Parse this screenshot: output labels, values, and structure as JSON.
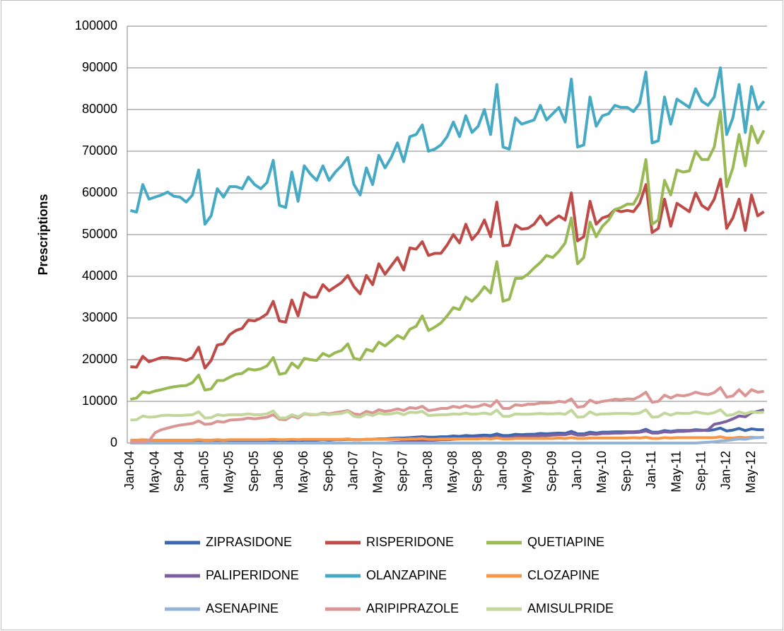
{
  "chart_data": {
    "type": "line",
    "y_label": "Prescriptions",
    "categories": [
      "Jan-04",
      null,
      null,
      null,
      "May-04",
      null,
      null,
      null,
      "Sep-04",
      null,
      null,
      null,
      "Jan-05",
      null,
      null,
      null,
      "May-05",
      null,
      null,
      null,
      "Sep-05",
      null,
      null,
      null,
      "Jan-06",
      null,
      null,
      null,
      "May-06",
      null,
      null,
      null,
      "Sep-06",
      null,
      null,
      null,
      "Jan-07",
      null,
      null,
      null,
      "May-07",
      null,
      null,
      null,
      "Sep-07",
      null,
      null,
      null,
      "Jan-08",
      null,
      null,
      null,
      "May-08",
      null,
      null,
      null,
      "Sep-08",
      null,
      null,
      null,
      "Jan-09",
      null,
      null,
      null,
      "May-09",
      null,
      null,
      null,
      "Sep-09",
      null,
      null,
      null,
      "Jan-10",
      null,
      null,
      null,
      "May-10",
      null,
      null,
      null,
      "Sep-10",
      null,
      null,
      null,
      "Jan-11",
      null,
      null,
      null,
      "May-11",
      null,
      null,
      null,
      "Sep-11",
      null,
      null,
      null,
      "Jan-12",
      null,
      null,
      null,
      "May-12",
      null,
      null
    ],
    "ylim": [
      0,
      100000
    ],
    "yticks": [
      0,
      10000,
      20000,
      30000,
      40000,
      50000,
      60000,
      70000,
      80000,
      90000,
      100000
    ],
    "grid": true,
    "legend": "bottom",
    "series": [
      {
        "name": "ZIPRASIDONE",
        "color": "#3c66ad",
        "values": [
          400,
          400,
          500,
          400,
          500,
          500,
          500,
          500,
          500,
          500,
          500,
          600,
          500,
          500,
          600,
          500,
          600,
          600,
          600,
          600,
          600,
          600,
          600,
          700,
          600,
          600,
          700,
          600,
          700,
          700,
          700,
          800,
          700,
          800,
          800,
          900,
          800,
          800,
          900,
          900,
          1000,
          1000,
          1100,
          1200,
          1200,
          1300,
          1400,
          1500,
          1400,
          1400,
          1500,
          1500,
          1700,
          1600,
          1800,
          1700,
          1800,
          1900,
          1800,
          2200,
          1800,
          1800,
          2100,
          2000,
          2100,
          2100,
          2300,
          2200,
          2300,
          2400,
          2300,
          2800,
          2200,
          2200,
          2600,
          2400,
          2600,
          2600,
          2700,
          2700,
          2700,
          2700,
          2800,
          3300,
          2600,
          2600,
          3000,
          2800,
          3000,
          3000,
          3000,
          3200,
          3100,
          3000,
          3200,
          3600,
          2900,
          3100,
          3500,
          3000,
          3400,
          3200,
          3200
        ]
      },
      {
        "name": "RISPERIDONE",
        "color": "#be4b48",
        "values": [
          18300,
          18200,
          20800,
          19500,
          20000,
          20500,
          20500,
          20300,
          20200,
          19800,
          20500,
          23000,
          18000,
          19800,
          23500,
          23800,
          26000,
          27000,
          27500,
          29500,
          29300,
          30000,
          31000,
          34000,
          29300,
          29000,
          34300,
          30500,
          36000,
          35000,
          35000,
          38000,
          36500,
          37500,
          38500,
          40200,
          37500,
          35800,
          40200,
          38000,
          43000,
          40500,
          42500,
          44500,
          41500,
          46800,
          46500,
          48300,
          45000,
          45500,
          45500,
          47500,
          50000,
          48000,
          52500,
          48800,
          50500,
          53500,
          49500,
          57800,
          47300,
          47500,
          52300,
          51300,
          51500,
          52500,
          54500,
          52300,
          53500,
          54500,
          53500,
          60000,
          48500,
          49500,
          58000,
          52500,
          54000,
          54500,
          56000,
          55500,
          55800,
          55500,
          57500,
          62000,
          50500,
          51500,
          58500,
          52000,
          57500,
          56500,
          55500,
          60000,
          57000,
          56000,
          58500,
          63300,
          51500,
          54000,
          58500,
          51000,
          59500,
          54500,
          55500
        ]
      },
      {
        "name": "QUETIAPINE",
        "color": "#98b954",
        "values": [
          10500,
          10800,
          12300,
          12000,
          12500,
          12800,
          13200,
          13500,
          13700,
          13800,
          14500,
          16300,
          12700,
          13000,
          15000,
          15000,
          15800,
          16500,
          16700,
          17800,
          17500,
          17800,
          18500,
          20500,
          16500,
          16800,
          19200,
          18000,
          20300,
          20000,
          19800,
          21500,
          20800,
          21700,
          22200,
          23800,
          20300,
          20000,
          22500,
          22000,
          24200,
          23300,
          24500,
          25800,
          25000,
          27300,
          28000,
          30500,
          27000,
          27800,
          28800,
          30500,
          32500,
          32000,
          35000,
          34000,
          35500,
          37500,
          36000,
          43500,
          34000,
          34500,
          39500,
          39500,
          40500,
          42000,
          43300,
          45000,
          44500,
          46000,
          48000,
          54000,
          43000,
          44500,
          53000,
          49500,
          52000,
          53500,
          56000,
          56500,
          57300,
          57300,
          60000,
          68000,
          52500,
          53500,
          63000,
          59500,
          65500,
          65000,
          65300,
          70000,
          68000,
          68000,
          71000,
          79500,
          61500,
          66000,
          74000,
          66500,
          76000,
          72000,
          75000
        ]
      },
      {
        "name": "PALIPERIDONE",
        "color": "#7d60a0",
        "values": [
          0,
          0,
          0,
          0,
          0,
          0,
          0,
          0,
          0,
          0,
          0,
          0,
          0,
          0,
          0,
          0,
          0,
          0,
          0,
          0,
          0,
          0,
          0,
          0,
          0,
          0,
          0,
          0,
          0,
          0,
          0,
          0,
          0,
          0,
          0,
          0,
          0,
          0,
          0,
          0,
          0,
          0,
          100,
          200,
          300,
          400,
          500,
          600,
          600,
          700,
          800,
          800,
          900,
          1000,
          1100,
          1100,
          1200,
          1300,
          1300,
          1500,
          1300,
          1300,
          1500,
          1500,
          1600,
          1700,
          1800,
          1800,
          1900,
          2000,
          2000,
          2300,
          1900,
          1900,
          2200,
          2100,
          2300,
          2300,
          2400,
          2400,
          2500,
          2500,
          2600,
          2900,
          2400,
          2400,
          2700,
          2600,
          2800,
          2800,
          2900,
          3000,
          3000,
          3200,
          4500,
          4800,
          5200,
          5800,
          6500,
          6300,
          7300,
          7600,
          8000
        ]
      },
      {
        "name": "OLANZAPINE",
        "color": "#46aac5",
        "values": [
          55800,
          55400,
          62000,
          58500,
          59000,
          59500,
          60200,
          59200,
          59000,
          57800,
          59500,
          65500,
          52500,
          54500,
          61000,
          59000,
          61500,
          61500,
          61000,
          63800,
          62000,
          61000,
          62500,
          67800,
          57000,
          56500,
          65000,
          58000,
          66500,
          64500,
          63000,
          66500,
          63000,
          65000,
          66500,
          68500,
          62000,
          59500,
          66000,
          62000,
          69000,
          66000,
          68500,
          72000,
          67500,
          73500,
          74000,
          76300,
          70000,
          70500,
          71500,
          73500,
          77000,
          73500,
          78500,
          74500,
          76000,
          80000,
          74000,
          86000,
          71000,
          70500,
          78000,
          76500,
          77000,
          77500,
          81000,
          77500,
          79000,
          80500,
          77000,
          87300,
          71000,
          71500,
          83000,
          76000,
          78500,
          79000,
          81000,
          80500,
          80500,
          79500,
          81500,
          89000,
          72000,
          72500,
          83000,
          76500,
          82500,
          81500,
          80500,
          85000,
          82000,
          81000,
          83000,
          90000,
          74000,
          78000,
          86000,
          74500,
          85500,
          80000,
          82000
        ]
      },
      {
        "name": "CLOZAPINE",
        "color": "#f79646",
        "values": [
          700,
          700,
          800,
          700,
          700,
          700,
          700,
          700,
          700,
          700,
          700,
          800,
          700,
          700,
          800,
          700,
          800,
          800,
          800,
          800,
          800,
          800,
          800,
          900,
          800,
          800,
          900,
          800,
          900,
          900,
          900,
          900,
          900,
          900,
          900,
          1000,
          800,
          800,
          900,
          900,
          900,
          900,
          900,
          1000,
          900,
          1000,
          1000,
          1100,
          900,
          900,
          1000,
          1000,
          1000,
          1000,
          1000,
          1000,
          1000,
          1100,
          1000,
          1200,
          1000,
          1000,
          1100,
          1100,
          1100,
          1100,
          1100,
          1100,
          1100,
          1200,
          1100,
          1300,
          1100,
          1100,
          1200,
          1200,
          1200,
          1200,
          1200,
          1200,
          1200,
          1300,
          1200,
          1400,
          1100,
          1100,
          1300,
          1200,
          1300,
          1300,
          1300,
          1300,
          1300,
          1300,
          1300,
          1500,
          1200,
          1200,
          1400,
          1300,
          1400,
          1300,
          1400
        ]
      },
      {
        "name": "ASENAPINE",
        "color": "#95b3d7",
        "values": [
          0,
          0,
          0,
          0,
          0,
          0,
          0,
          0,
          0,
          0,
          0,
          0,
          0,
          0,
          0,
          0,
          0,
          0,
          0,
          0,
          0,
          0,
          0,
          0,
          0,
          0,
          0,
          0,
          0,
          0,
          0,
          0,
          0,
          0,
          0,
          0,
          0,
          0,
          0,
          0,
          0,
          0,
          0,
          0,
          0,
          0,
          0,
          0,
          0,
          0,
          0,
          0,
          0,
          0,
          0,
          0,
          0,
          0,
          0,
          0,
          0,
          0,
          0,
          0,
          0,
          0,
          0,
          0,
          0,
          0,
          0,
          0,
          0,
          0,
          0,
          0,
          0,
          0,
          0,
          0,
          0,
          0,
          0,
          0,
          0,
          0,
          0,
          0,
          0,
          0,
          0,
          0,
          100,
          200,
          300,
          500,
          600,
          800,
          1000,
          900,
          1200,
          1300,
          1400
        ]
      },
      {
        "name": "ARIPIPRAZOLE",
        "color": "#d99694",
        "values": [
          200,
          300,
          300,
          500,
          2500,
          3200,
          3600,
          4000,
          4300,
          4500,
          4700,
          5300,
          4500,
          4600,
          5200,
          5000,
          5500,
          5600,
          5700,
          6000,
          5800,
          6000,
          6200,
          6800,
          5700,
          5600,
          6500,
          6000,
          7000,
          6800,
          6800,
          7200,
          7000,
          7300,
          7500,
          7800,
          7000,
          6800,
          7600,
          7200,
          8000,
          7600,
          7800,
          8200,
          7800,
          8500,
          8300,
          8800,
          7800,
          8000,
          8300,
          8300,
          8800,
          8500,
          9000,
          8600,
          8800,
          9300,
          8800,
          10200,
          8300,
          8300,
          9200,
          9000,
          9300,
          9300,
          9600,
          9600,
          9700,
          10000,
          9800,
          10600,
          8600,
          8800,
          10300,
          9600,
          10000,
          10200,
          10500,
          10400,
          10600,
          10500,
          11200,
          12200,
          9800,
          10000,
          11500,
          10800,
          11500,
          11300,
          11600,
          12200,
          11800,
          11600,
          12100,
          13300,
          11000,
          11300,
          12800,
          11300,
          12800,
          12200,
          12400
        ]
      },
      {
        "name": "AMISULPRIDE",
        "color": "#c3d69b",
        "values": [
          5500,
          5600,
          6500,
          6200,
          6300,
          6600,
          6700,
          6600,
          6600,
          6700,
          6800,
          7500,
          6000,
          6100,
          6800,
          6600,
          6800,
          6800,
          6800,
          7000,
          6800,
          6800,
          7000,
          7700,
          6000,
          6000,
          6800,
          6300,
          7100,
          6900,
          6800,
          7000,
          6800,
          7000,
          7100,
          7600,
          6400,
          6200,
          7000,
          6600,
          7200,
          6900,
          7000,
          7300,
          6800,
          7400,
          7300,
          7600,
          6600,
          6700,
          6800,
          6800,
          7000,
          6900,
          7200,
          6900,
          7000,
          7200,
          6900,
          7900,
          6400,
          6400,
          7000,
          6900,
          6900,
          7000,
          7100,
          7000,
          7000,
          7100,
          6900,
          7900,
          6200,
          6300,
          7500,
          6800,
          7000,
          7000,
          7100,
          7100,
          7100,
          7000,
          7200,
          8000,
          6200,
          6300,
          7200,
          6700,
          7200,
          7100,
          7100,
          7500,
          7200,
          7000,
          7300,
          8000,
          6600,
          6800,
          7500,
          7000,
          7500,
          7300,
          7400
        ]
      }
    ]
  }
}
